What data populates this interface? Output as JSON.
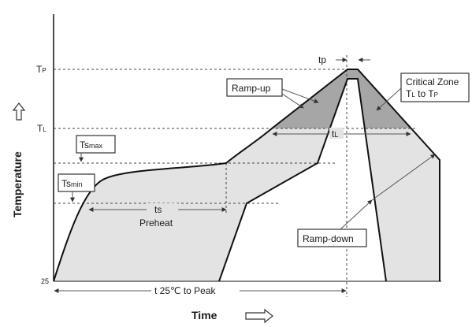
{
  "labels": {
    "tp_axis": "TP",
    "tl_axis": "TL",
    "t25_axis": "25",
    "y_axis_title": "Temperature",
    "x_axis_title": "Time",
    "tp_interval": "tp",
    "ramp_up": "Ramp-up",
    "critical_zone_line1": "Critical Zone",
    "critical_zone_line2": "TL to TP",
    "tl_interval": "tL",
    "ts_max": "Tsmax",
    "ts_min": "Tsmin",
    "ts": "ts",
    "preheat": "Preheat",
    "ramp_down": "Ramp-down",
    "t25_to_peak": "t 25℃ to Peak"
  },
  "colors": {
    "profile_fill": "#e3e3e3",
    "critical_fill": "#a6a6a6",
    "outline": "#111111"
  }
}
